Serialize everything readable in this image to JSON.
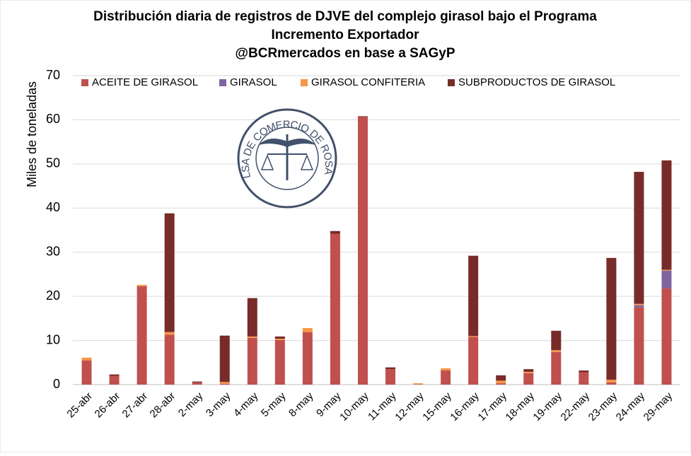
{
  "chart_data": {
    "type": "stacked_bar",
    "title": [
      "Distribución diaria de registros de DJVE del complejo girasol bajo el Programa",
      "Incremento Exportador",
      "@BCRmercados en base a SAGyP"
    ],
    "y_label": "Miles de toneladas",
    "logo_text": "BOLSA DE COMERCIO DE ROSARIO",
    "categories": [
      "25-abr",
      "26-abr",
      "27-abr",
      "28-abr",
      "2-may",
      "3-may",
      "4-may",
      "5-may",
      "8-may",
      "9-may",
      "10-may",
      "11-may",
      "12-may",
      "15-may",
      "16-may",
      "17-may",
      "18-may",
      "19-may",
      "22-may",
      "23-may",
      "24-may",
      "29-may"
    ],
    "series": [
      {
        "name": "ACEITE DE GIRASOL",
        "color": "#c0504d",
        "values": [
          5.5,
          2.0,
          22.3,
          11.3,
          0.5,
          0.2,
          10.6,
          10.1,
          11.9,
          34.2,
          60.6,
          3.5,
          0.1,
          3.2,
          10.8,
          0.3,
          2.6,
          7.4,
          2.8,
          0.5,
          17.5,
          21.8
        ]
      },
      {
        "name": "GIRASOL",
        "color": "#8064a2",
        "values": [
          0,
          0,
          0,
          0,
          0,
          0,
          0,
          0,
          0,
          0,
          0,
          0,
          0,
          0,
          0,
          0,
          0,
          0,
          0,
          0,
          0.5,
          4.0
        ]
      },
      {
        "name": "GIRASOL CONFITERIA",
        "color": "#f79646",
        "values": [
          0.6,
          0,
          0.3,
          0.6,
          0,
          0.4,
          0.3,
          0.3,
          0.9,
          0,
          0,
          0,
          0.2,
          0.5,
          0.2,
          0.6,
          0.3,
          0.4,
          0,
          0.6,
          0.3,
          0.2
        ]
      },
      {
        "name": "SUBPRODUCTOS DE GIRASOL",
        "color": "#772c2a",
        "values": [
          0,
          0.3,
          0,
          26.9,
          0.2,
          10.5,
          8.7,
          0.5,
          0,
          0.6,
          0.2,
          0.4,
          0,
          0,
          18.2,
          1.2,
          0.6,
          4.4,
          0.4,
          27.6,
          29.9,
          24.8
        ]
      }
    ],
    "ylim": [
      0,
      70
    ],
    "yticks": [
      0,
      10,
      20,
      30,
      40,
      50,
      60,
      70
    ],
    "grid": true,
    "legend": "top"
  }
}
